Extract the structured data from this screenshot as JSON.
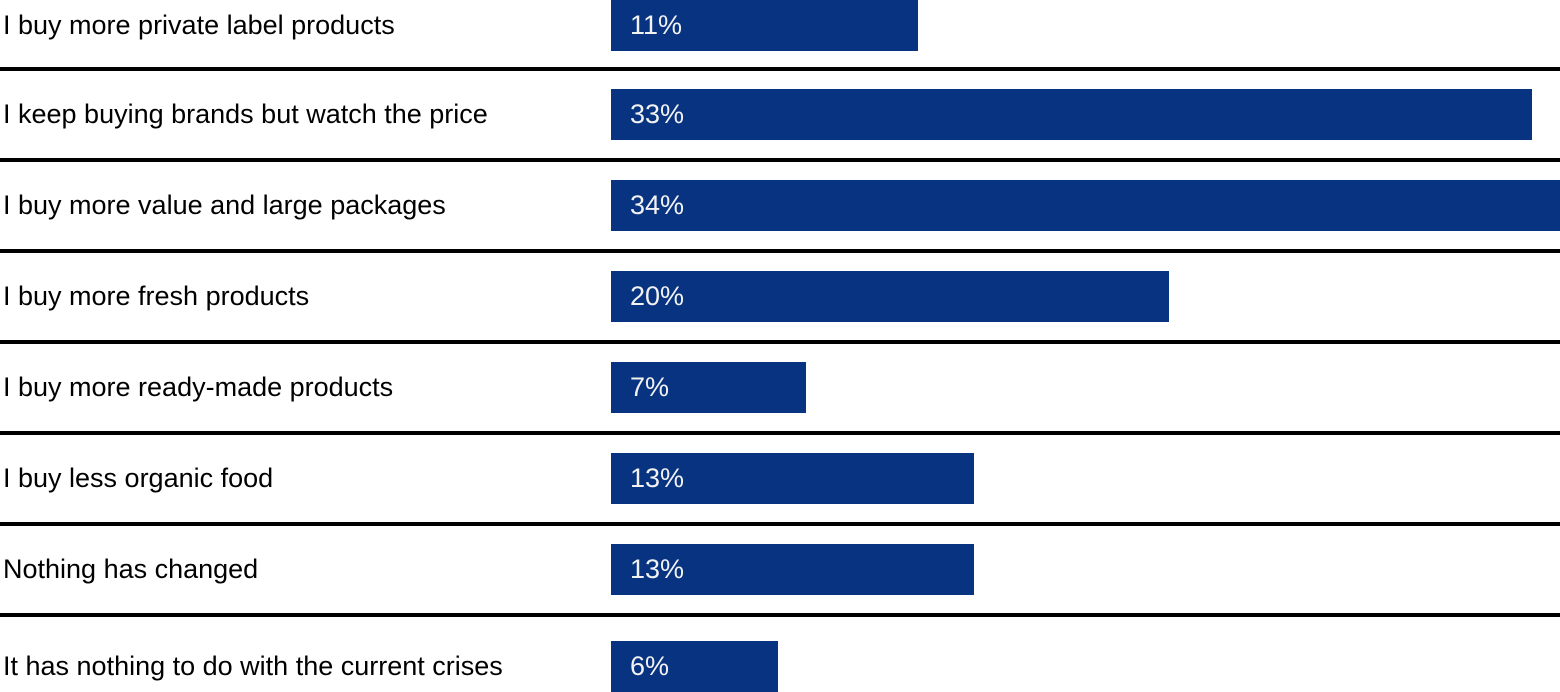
{
  "chart_data": {
    "type": "bar",
    "orientation": "horizontal",
    "title": "",
    "xlabel": "",
    "ylabel": "",
    "categories": [
      "I buy more private label products",
      "I keep buying brands but watch the price",
      "I buy more value and large packages",
      "I buy more fresh products",
      "I buy more ready-made products",
      "I buy less organic food",
      "Nothing has changed",
      "It has nothing to do with the current crises"
    ],
    "values": [
      11,
      33,
      34,
      20,
      7,
      13,
      13,
      6
    ],
    "value_labels": [
      "11%",
      "33%",
      "34%",
      "20%",
      "7%",
      "13%",
      "13%",
      "6%"
    ],
    "xlim": [
      0,
      34
    ],
    "grid": false,
    "legend": "none",
    "data_label_position": "inside-start",
    "row_dividers": true
  },
  "colors": {
    "bar": "#083380",
    "divider": "#000000",
    "category_text": "#000000",
    "value_text": "#f2f2f2",
    "background": "#ffffff"
  }
}
